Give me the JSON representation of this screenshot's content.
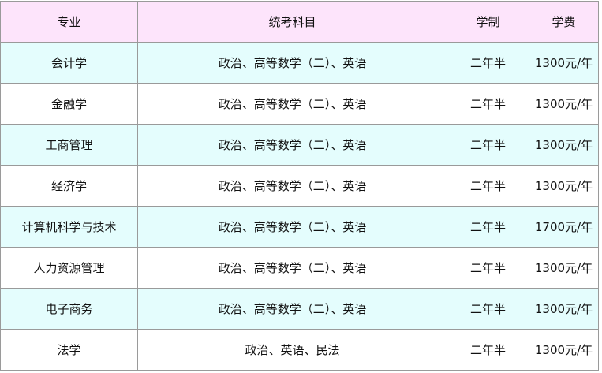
{
  "headers": [
    "专业",
    "统考科目",
    "学制",
    "学费"
  ],
  "rows": [
    [
      "会计学",
      "政治、高等数学（二）、英语",
      "二年半",
      "1300元/年"
    ],
    [
      "金融学",
      "政治、高等数学（二）、英语",
      "二年半",
      "1300元/年"
    ],
    [
      "工商管理",
      "政治、高等数学（二）、英语",
      "二年半",
      "1300元/年"
    ],
    [
      "经济学",
      "政治、高等数学（二）、英语",
      "二年半",
      "1300元/年"
    ],
    [
      "计算机科学与技术",
      "政治、高等数学（二）、英语",
      "二年半",
      "1700元/年"
    ],
    [
      "人力资源管理",
      "政治、高等数学（二）、英语",
      "二年半",
      "1300元/年"
    ],
    [
      "电子商务",
      "政治、高等数学（二）、英语",
      "二年半",
      "1300元/年"
    ],
    [
      "法学",
      "政治、英语、民法",
      "二年半",
      "1300元/年"
    ]
  ],
  "colors": {
    "header_bg": "#fde4fb",
    "alt_row_bg": "#e4fdfd",
    "border": "#9a9a9a"
  }
}
